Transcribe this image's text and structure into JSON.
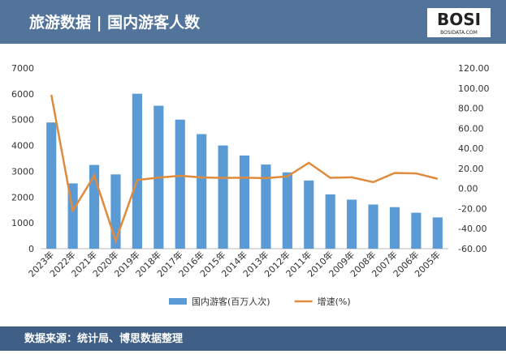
{
  "header": {
    "logo": "BOSI",
    "logo_sub": "BOSIDATA.COM"
  },
  "chart_data": {
    "type": "bar_line",
    "title": "旅游数据 | 国内游客人数",
    "source": "数据来源：统计局、博思数据整理",
    "categories": [
      "2023年",
      "2022年",
      "2021年",
      "2020年",
      "2019年",
      "2018年",
      "2017年",
      "2016年",
      "2015年",
      "2014年",
      "2013年",
      "2012年",
      "2011年",
      "2010年",
      "2009年",
      "2008年",
      "2007年",
      "2006年",
      "2005年"
    ],
    "series": [
      {
        "name": "国内游客(百万人次)",
        "type": "bar",
        "color": "#5b9bd5",
        "values": [
          4891,
          2530,
          3246,
          2879,
          6006,
          5539,
          5001,
          4440,
          4000,
          3611,
          3262,
          2957,
          2641,
          2103,
          1902,
          1712,
          1610,
          1394,
          1212
        ]
      },
      {
        "name": "增速(%)",
        "type": "line",
        "axis": "y2",
        "color": "#e08a3c",
        "values": [
          93.3,
          -22.1,
          12.8,
          -52.1,
          8.4,
          10.8,
          12.6,
          11.0,
          10.5,
          10.7,
          10.3,
          12.0,
          25.6,
          10.6,
          11.1,
          6.3,
          15.5,
          15.0,
          9.6
        ]
      }
    ],
    "ylim": [
      0,
      7000
    ],
    "yticks": [
      0,
      1000,
      2000,
      3000,
      4000,
      5000,
      6000,
      7000
    ],
    "y2lim": [
      -60,
      120
    ],
    "y2ticks": [
      {
        "value": -60,
        "label": "-60.00"
      },
      {
        "value": -40,
        "label": "-40.00"
      },
      {
        "value": -20,
        "label": "-20.00"
      },
      {
        "value": 0,
        "label": "0.00"
      },
      {
        "value": 20,
        "label": "20.00"
      },
      {
        "value": 40,
        "label": "40.00"
      },
      {
        "value": 60,
        "label": "60.00"
      },
      {
        "value": 80,
        "label": "80.00"
      },
      {
        "value": 100,
        "label": "100.00"
      },
      {
        "value": 120,
        "label": "120.00"
      }
    ]
  }
}
